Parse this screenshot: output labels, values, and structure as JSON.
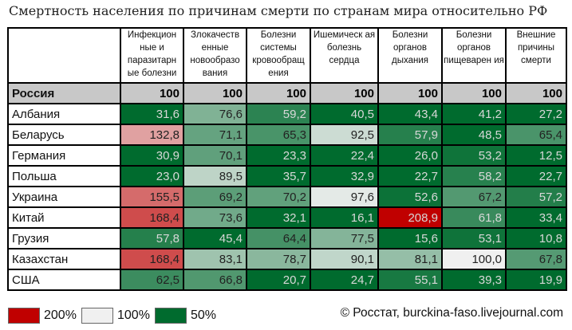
{
  "title": "Смертность населения по причинам смерти по странам мира относительно РФ",
  "source": "© Росстат, burckina-faso.livejournal.com",
  "legend": [
    {
      "label": "200%",
      "color": "#c00000"
    },
    {
      "label": "100%",
      "color": "#f0f0f0"
    },
    {
      "label": "50%",
      "color": "#006b2e"
    }
  ],
  "chart_data": {
    "type": "heatmap",
    "title": "Смертность населения по причинам смерти по странам мира относительно РФ",
    "columns": [
      "Инфекцион ные и паразитарн ые болезни",
      "Злокачеств енные новообразо вания",
      "Болезни системы кровообращ ения",
      "Ишемическ ая болезнь сердца",
      "Болезни органов дыхания",
      "Болезни органов пищеварен ия",
      "Внешние причины смерти"
    ],
    "reference_row": {
      "name": "Россия",
      "values": [
        "100",
        "100",
        "100",
        "100",
        "100",
        "100",
        "100"
      ]
    },
    "rows": [
      {
        "name": "Албания",
        "values": [
          "31,6",
          "76,6",
          "59,2",
          "40,5",
          "43,4",
          "41,2",
          "27,2"
        ]
      },
      {
        "name": "Беларусь",
        "values": [
          "132,8",
          "71,1",
          "65,3",
          "92,5",
          "57,9",
          "48,5",
          "65,4"
        ]
      },
      {
        "name": "Германия",
        "values": [
          "30,9",
          "70,1",
          "23,3",
          "22,4",
          "26,0",
          "53,2",
          "12,5"
        ]
      },
      {
        "name": "Польша",
        "values": [
          "23,0",
          "89,5",
          "35,7",
          "32,9",
          "22,7",
          "58,2",
          "22,7"
        ]
      },
      {
        "name": "Украина",
        "values": [
          "155,5",
          "69,2",
          "70,2",
          "97,6",
          "52,6",
          "67,2",
          "57,2"
        ]
      },
      {
        "name": "Китай",
        "values": [
          "168,4",
          "73,6",
          "32,1",
          "16,1",
          "208,9",
          "61,8",
          "33,4"
        ]
      },
      {
        "name": "Грузия",
        "values": [
          "57,8",
          "45,4",
          "64,4",
          "77,5",
          "15,6",
          "53,1",
          "10,8"
        ]
      },
      {
        "name": "Казахстан",
        "values": [
          "168,4",
          "83,1",
          "78,7",
          "90,1",
          "81,1",
          "100,0",
          "67,8"
        ]
      },
      {
        "name": "США",
        "values": [
          "62,5",
          "66,8",
          "20,7",
          "24,7",
          "55,1",
          "39,3",
          "19,9"
        ]
      }
    ],
    "color_scale": {
      "min_value": 50,
      "mid_value": 100,
      "max_value": 200,
      "min_color": "#006b2e",
      "mid_color": "#f0f0f0",
      "max_color": "#c00000"
    }
  }
}
